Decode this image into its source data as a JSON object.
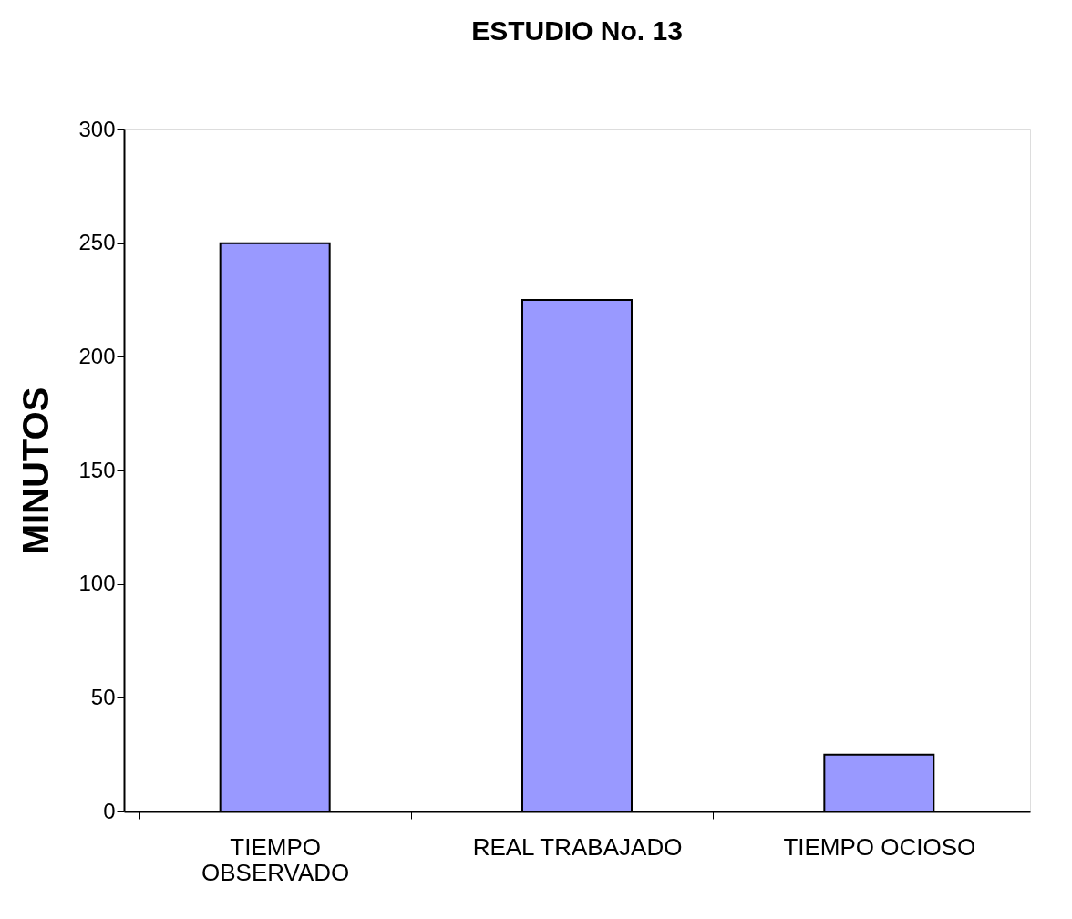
{
  "chart_data": {
    "type": "bar",
    "title": "ESTUDIO No. 13",
    "ylabel": "MINUTOS",
    "categories": [
      "TIEMPO OBSERVADO",
      "REAL TRABAJADO",
      "TIEMPO OCIOSO"
    ],
    "values": [
      250,
      225,
      25
    ],
    "color": "#9999ff",
    "ylim": [
      0,
      300
    ],
    "yticks": [
      0,
      50,
      100,
      150,
      200,
      250,
      300
    ],
    "grid": false,
    "legend": false
  }
}
